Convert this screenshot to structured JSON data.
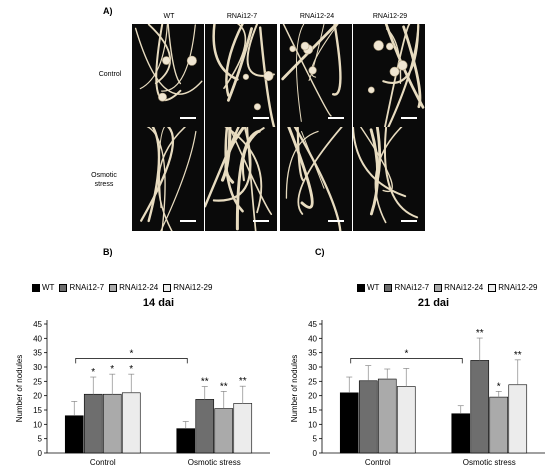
{
  "panel_a": {
    "label": "A)",
    "columns": [
      "WT",
      "RNAi12-7",
      "RNAi12-24",
      "RNAi12-29"
    ],
    "rows": [
      "Control",
      "Osmotic stress"
    ],
    "photo_description_colors": {
      "background": "#0a0a0a",
      "root": "#e8dcc0",
      "nodule": "#f0e6d2"
    }
  },
  "panel_b_label": "B)",
  "panel_c_label": "C)",
  "legend": [
    {
      "name": "WT",
      "color": "#000000"
    },
    {
      "name": "RNAi12-7",
      "color": "#6e6e6e"
    },
    {
      "name": "RNAi12-24",
      "color": "#aaaaaa"
    },
    {
      "name": "RNAi12-29",
      "color": "#ececec"
    }
  ],
  "chart_data": [
    {
      "type": "bar",
      "title": "14 dai",
      "ylabel": "Number of nodules",
      "xlabel": "",
      "categories": [
        "Control",
        "Osmotic stress"
      ],
      "ylim": [
        0,
        45
      ],
      "yticks": [
        0,
        5,
        10,
        15,
        20,
        25,
        30,
        35,
        40,
        45
      ],
      "series": [
        {
          "name": "WT",
          "values": [
            13,
            8.5
          ],
          "errors": [
            5,
            2.5
          ],
          "sig": [
            "",
            ""
          ]
        },
        {
          "name": "RNAi12-7",
          "values": [
            20.5,
            18.7
          ],
          "errors": [
            6,
            4.5
          ],
          "sig": [
            "*",
            "**"
          ]
        },
        {
          "name": "RNAi12-24",
          "values": [
            20.5,
            15.5
          ],
          "errors": [
            7,
            6
          ],
          "sig": [
            "*",
            "**"
          ]
        },
        {
          "name": "RNAi12-29",
          "values": [
            21,
            17.3
          ],
          "errors": [
            6.5,
            6
          ],
          "sig": [
            "*",
            "**"
          ]
        }
      ],
      "comparison_bracket": {
        "value": 33,
        "label": "*"
      }
    },
    {
      "type": "bar",
      "title": "21 dai",
      "ylabel": "Number of nodules",
      "xlabel": "",
      "categories": [
        "Control",
        "Osmotic stress"
      ],
      "ylim": [
        0,
        45
      ],
      "yticks": [
        0,
        5,
        10,
        15,
        20,
        25,
        30,
        35,
        40,
        45
      ],
      "series": [
        {
          "name": "WT",
          "values": [
            21,
            13.7
          ],
          "errors": [
            5.5,
            2.8
          ],
          "sig": [
            "",
            ""
          ]
        },
        {
          "name": "RNAi12-7",
          "values": [
            25.2,
            32.3
          ],
          "errors": [
            5.3,
            7.8
          ],
          "sig": [
            "",
            "**"
          ]
        },
        {
          "name": "RNAi12-24",
          "values": [
            25.8,
            19.5
          ],
          "errors": [
            3.5,
            2
          ],
          "sig": [
            "",
            "*"
          ]
        },
        {
          "name": "RNAi12-29",
          "values": [
            23.2,
            23.8
          ],
          "errors": [
            6.3,
            8.7
          ],
          "sig": [
            "",
            "**"
          ]
        }
      ],
      "comparison_bracket": {
        "value": 33,
        "label": "*"
      }
    }
  ]
}
